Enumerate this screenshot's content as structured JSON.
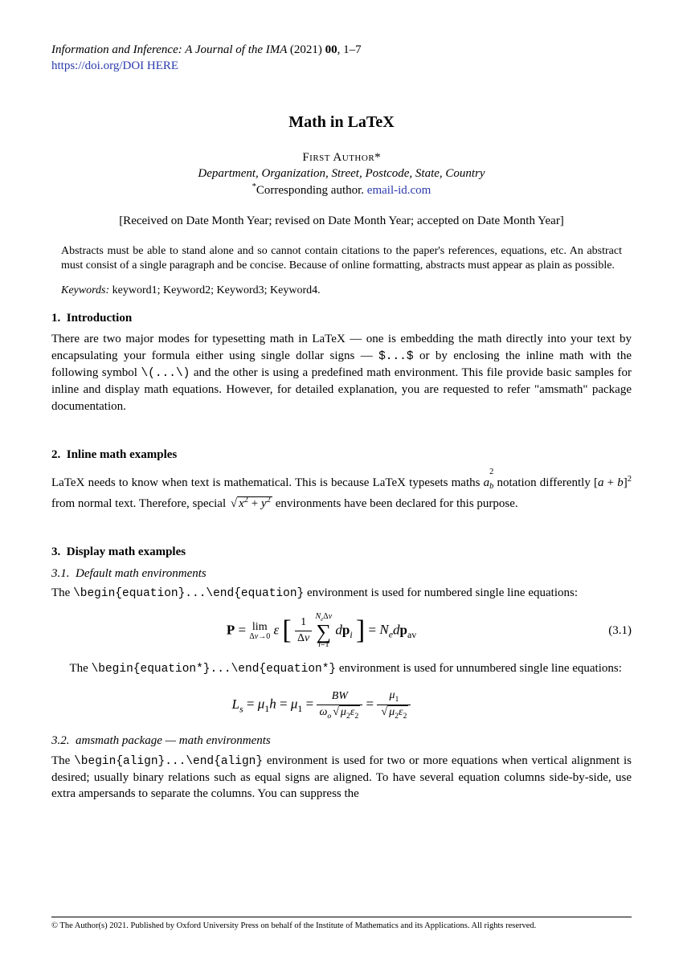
{
  "header": {
    "journal": "Information and Inference: A Journal of the IMA",
    "year": "(2021)",
    "vol": "00",
    "pages": "1–7",
    "doi_url": "https://doi.org/DOI HERE"
  },
  "title": "Math in LaTeX",
  "author": {
    "name": "First Author",
    "affiliation": "Department, Organization, Street, Postcode, State, Country",
    "corresponding_label": "Corresponding author.",
    "email": "email-id.com"
  },
  "dates": "[Received on Date Month Year; revised on Date Month Year; accepted on Date Month Year]",
  "abstract": "Abstracts must be able to stand alone and so cannot contain citations to the paper's references, equations, etc. An abstract must consist of a single paragraph and be concise. Because of online formatting, abstracts must appear as plain as possible.",
  "keywords": {
    "label": "Keywords:",
    "list": "keyword1; Keyword2; Keyword3; Keyword4."
  },
  "sections": {
    "s1": {
      "num": "1.",
      "title": "Introduction"
    },
    "s2": {
      "num": "2.",
      "title": "Inline math examples"
    },
    "s3": {
      "num": "3.",
      "title": "Display math examples"
    },
    "s31": {
      "num": "3.1.",
      "title": "Default math environments"
    },
    "s32": {
      "num": "3.2.",
      "title": "amsmath package — math environments"
    }
  },
  "body": {
    "intro": "There are two major modes for typesetting math in LaTeX — one is embedding the math directly into your text by encapsulating your formula either using single dollar signs — $...$ or by enclosing the inline math with the following symbol \\(...\\) and the other is using a predefined math environment. This file provide basic samples for inline and display math equations. However, for detailed explanation, you are requested to refer \"amsmath\" package documentation.",
    "inline_pre": "LaTeX needs to know when text is mathematical. This is because LaTeX typesets maths ",
    "inline_mid1": " notation differently ",
    "inline_mid2": " from normal text. Therefore, special ",
    "inline_post": " environments have been declared for this purpose.",
    "disp1_pre": "The ",
    "disp1_code": "\\begin{equation}...\\end{equation}",
    "disp1_post": " environment is used for numbered single line equations:",
    "disp2_pre": "The ",
    "disp2_code": "\\begin{equation*}...\\end{equation*}",
    "disp2_post": " environment is used for unnumbered single line equations:",
    "align_pre": "The ",
    "align_code": "\\begin{align}...\\end{align}",
    "align_post": " environment is used for two or more equations when vertical alignment is desired; usually binary relations such as equal signs are aligned. To have several equation columns side-by-side, use extra ampersands to separate the columns. You can suppress the"
  },
  "equations": {
    "eq1_num": "(3.1)"
  },
  "footer": "© The Author(s) 2021. Published by Oxford University Press on behalf of the Institute of Mathematics and its Applications. All rights reserved.",
  "colors": {
    "link": "#2a3aad",
    "text": "#000000",
    "bg": "#ffffff"
  },
  "typography": {
    "body_font": "Times New Roman",
    "code_font": "Courier New",
    "body_size_pt": 15,
    "title_size_pt": 20,
    "abstract_size_pt": 14,
    "footer_size_pt": 10.5
  }
}
